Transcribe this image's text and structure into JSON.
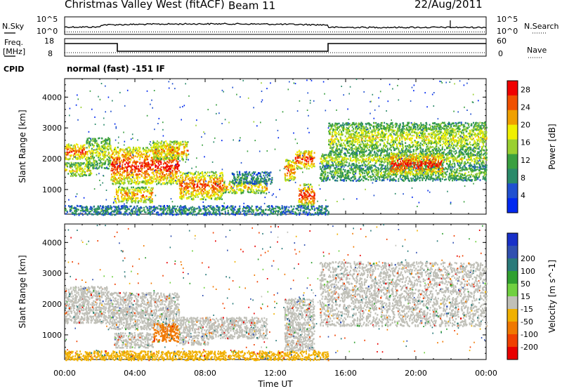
{
  "header": {
    "station": "Christmas Valley West (fitACF)",
    "beam": "Beam 11",
    "date": "22/Aug/2011"
  },
  "strips": {
    "nsky": "N.Sky",
    "nsearch": "N.Search",
    "freq_label_1": "Freq.",
    "freq_label_2": "[MHz]",
    "nave": "Nave",
    "cpid": "CPID",
    "cpid_value": "normal (fast) -151 IF",
    "noise_left_ticks": [
      "10^5",
      "10^0"
    ],
    "noise_right_ticks": [
      "10^5",
      "10^0"
    ],
    "freq_left_ticks": [
      "18",
      "8"
    ],
    "freq_right_ticks": [
      "60",
      "0"
    ]
  },
  "colors": {
    "power_scale": [
      "#0028f0",
      "#2050d0",
      "#2a8a6a",
      "#3aa040",
      "#9ad030",
      "#f0f000",
      "#f0a000",
      "#f05000",
      "#f00000"
    ],
    "velocity_scale": [
      "#e80000",
      "#f04000",
      "#f07800",
      "#f0b000",
      "#c0c0b8",
      "#70d040",
      "#30a030",
      "#2a7a7a",
      "#3050b0",
      "#1830c8"
    ],
    "gray": "#c0c0b8"
  },
  "chart_data": [
    {
      "type": "heatmap",
      "title": "Power",
      "xlabel": "Time UT",
      "ylabel": "Slant Range [km]",
      "x_ticks": [
        "00:00",
        "04:00",
        "08:00",
        "12:00",
        "16:00",
        "20:00",
        "00:00"
      ],
      "xlim_hours": [
        0,
        24
      ],
      "y_ticks": [
        1000,
        2000,
        3000,
        4000
      ],
      "ylim": [
        200,
        4600
      ],
      "colorbar": {
        "label": "Power [dB]",
        "ticks": [
          4,
          8,
          12,
          16,
          20,
          24,
          28
        ],
        "range": [
          0,
          30
        ]
      },
      "bands": [
        {
          "t0": 0.0,
          "t1": 1.2,
          "r0": 2000,
          "r1": 2500,
          "value": 26
        },
        {
          "t0": 0.0,
          "t1": 1.5,
          "r0": 1450,
          "r1": 1900,
          "value": 20
        },
        {
          "t0": 1.2,
          "t1": 2.6,
          "r0": 1700,
          "r1": 2700,
          "value": 18
        },
        {
          "t0": 2.6,
          "t1": 6.5,
          "r0": 1200,
          "r1": 2400,
          "value": 28
        },
        {
          "t0": 2.8,
          "t1": 5.0,
          "r0": 600,
          "r1": 1100,
          "value": 24
        },
        {
          "t0": 5.0,
          "t1": 7.0,
          "r0": 2000,
          "r1": 2600,
          "value": 24
        },
        {
          "t0": 6.5,
          "t1": 9.0,
          "r0": 700,
          "r1": 1600,
          "value": 26
        },
        {
          "t0": 9.0,
          "t1": 11.5,
          "r0": 900,
          "r1": 1300,
          "value": 22
        },
        {
          "t0": 9.5,
          "t1": 11.8,
          "r0": 1200,
          "r1": 1600,
          "value": 10
        },
        {
          "t0": 12.5,
          "t1": 13.1,
          "r0": 1300,
          "r1": 2000,
          "value": 26
        },
        {
          "t0": 13.1,
          "t1": 14.2,
          "r0": 1700,
          "r1": 2300,
          "value": 28
        },
        {
          "t0": 13.3,
          "t1": 14.2,
          "r0": 500,
          "r1": 1200,
          "value": 28
        },
        {
          "t0": 14.5,
          "t1": 24.0,
          "r0": 1300,
          "r1": 1800,
          "value": 14
        },
        {
          "t0": 14.5,
          "t1": 24.0,
          "r0": 1800,
          "r1": 2200,
          "value": 18
        },
        {
          "t0": 15.0,
          "t1": 24.0,
          "r0": 2200,
          "r1": 3200,
          "value": 18
        },
        {
          "t0": 18.5,
          "t1": 21.5,
          "r0": 1500,
          "r1": 2200,
          "value": 28
        },
        {
          "t0": 0.0,
          "t1": 15.0,
          "r0": 200,
          "r1": 500,
          "value": 10
        }
      ]
    },
    {
      "type": "heatmap",
      "title": "Velocity",
      "xlabel": "Time UT",
      "ylabel": "Slant Range [km]",
      "x_ticks": [
        "00:00",
        "04:00",
        "08:00",
        "12:00",
        "16:00",
        "20:00",
        "00:00"
      ],
      "xlim_hours": [
        0,
        24
      ],
      "y_ticks": [
        1000,
        2000,
        3000,
        4000
      ],
      "ylim": [
        200,
        4600
      ],
      "colorbar": {
        "label": "Velocity [m s^-1]",
        "ticks": [
          -200,
          -100,
          -50,
          -15,
          15,
          50,
          100,
          200
        ],
        "range": [
          -250,
          250
        ]
      },
      "bands": [
        {
          "t0": 0.0,
          "t1": 2.5,
          "r0": 1400,
          "r1": 2600,
          "value": 0
        },
        {
          "t0": 2.5,
          "t1": 6.5,
          "r0": 1200,
          "r1": 2400,
          "value": 0
        },
        {
          "t0": 2.8,
          "t1": 5.0,
          "r0": 600,
          "r1": 1100,
          "value": 0
        },
        {
          "t0": 5.0,
          "t1": 6.5,
          "r0": 800,
          "r1": 1400,
          "value": -60
        },
        {
          "t0": 6.5,
          "t1": 8.2,
          "r0": 700,
          "r1": 1600,
          "value": 0
        },
        {
          "t0": 8.2,
          "t1": 11.5,
          "r0": 900,
          "r1": 1600,
          "value": 0
        },
        {
          "t0": 12.5,
          "t1": 14.2,
          "r0": 500,
          "r1": 2200,
          "value": 0
        },
        {
          "t0": 14.5,
          "t1": 24.0,
          "r0": 1300,
          "r1": 3400,
          "value": 0
        },
        {
          "t0": 0.0,
          "t1": 15.0,
          "r0": 200,
          "r1": 500,
          "value": -40
        }
      ]
    }
  ]
}
